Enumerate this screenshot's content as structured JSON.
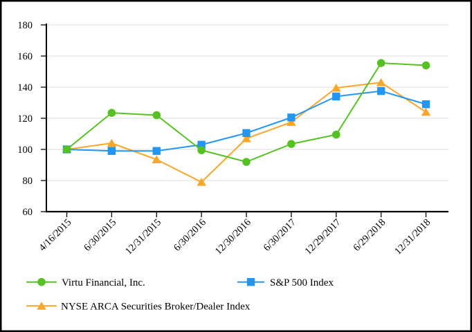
{
  "chart_data": {
    "type": "line",
    "title": "",
    "categories": [
      "4/16/2015",
      "6/30/2015",
      "12/31/2015",
      "6/30/2016",
      "12/30/2016",
      "6/30/2017",
      "12/29/2017",
      "6/29/2018",
      "12/31/2018"
    ],
    "series": [
      {
        "name": "Virtu Financial, Inc.",
        "marker": "circle",
        "color": "#55C221",
        "values": [
          100,
          123.5,
          122,
          99.5,
          92,
          103.5,
          109.5,
          155.5,
          154
        ]
      },
      {
        "name": "S&P 500 Index",
        "marker": "square",
        "color": "#2196F3",
        "values": [
          100,
          99,
          99,
          103,
          110.5,
          120.5,
          134,
          137.5,
          129
        ]
      },
      {
        "name": "NYSE ARCA Securities Broker/Dealer Index",
        "marker": "triangle",
        "color": "#F9A72B",
        "values": [
          100,
          104,
          93.5,
          79,
          107,
          117.5,
          139.5,
          143,
          124
        ]
      }
    ],
    "draw_order_back_to_front": [
      "NYSE ARCA Securities Broker/Dealer Index",
      "S&P 500 Index",
      "Virtu Financial, Inc."
    ],
    "yticks": [
      60,
      80,
      100,
      120,
      140,
      160,
      180
    ],
    "ylim": [
      60,
      180
    ],
    "xlabel": "",
    "ylabel": "",
    "grid": true,
    "gridline_color": "#E3E3E3",
    "axis_color": "#000000",
    "text_color": "#000000",
    "background_color": "#FFFFFF",
    "border_color": "#000000",
    "legend_position": "bottom-left"
  }
}
